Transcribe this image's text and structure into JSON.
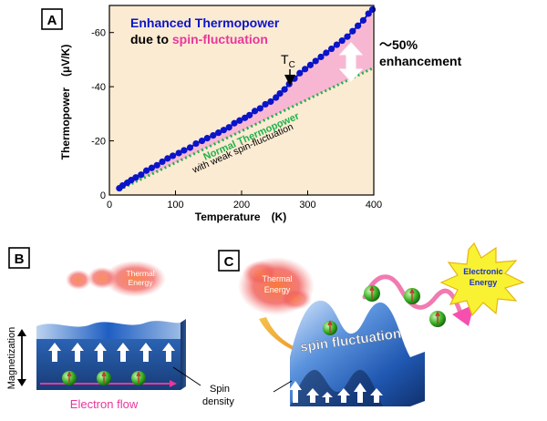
{
  "panels": {
    "a": {
      "label": "A"
    },
    "b": {
      "label": "B"
    },
    "c": {
      "label": "C"
    }
  },
  "chart_data": {
    "type": "scatter",
    "title_line1": "Enhanced Thermopower",
    "title_line2_a": "due to ",
    "title_line2_b": "spin-fluctuation",
    "xlabel": "Temperature　(K)",
    "ylabel": "Thermopower　(μV/K)",
    "xlim": [
      0,
      400
    ],
    "ylim": [
      0,
      -70
    ],
    "x_ticks": [
      "0",
      "100",
      "200",
      "300",
      "400"
    ],
    "y_ticks": [
      "0",
      "-20",
      "-40",
      "-60"
    ],
    "tc_label": "T",
    "tc_sub": "C",
    "normal_label": "Normal Thermopower",
    "weak_label": "with weak spin-fluctuation",
    "enhancement_pct": "～50%",
    "enhancement_word": "enhancement",
    "colors": {
      "data": "#0a14c8",
      "normal": "#22b14c",
      "bg": "#fbebd3",
      "fill": "#f7b7d2",
      "title_pink": "#e8379a"
    },
    "series": [
      {
        "x": [
          15,
          20,
          27,
          33,
          40,
          48,
          56,
          64,
          72,
          80,
          88,
          96,
          105,
          113,
          122,
          131,
          140,
          148,
          157,
          165,
          173,
          181,
          189,
          197,
          205,
          212,
          220,
          228,
          236,
          244,
          252,
          258,
          265,
          272,
          280,
          288,
          296,
          304,
          312,
          320,
          328,
          336,
          344,
          352,
          360,
          368,
          376,
          384,
          392,
          398
        ],
        "y": [
          -2.5,
          -3.5,
          -4.5,
          -5.5,
          -6.5,
          -7.5,
          -9,
          -10,
          -11,
          -12.3,
          -13.5,
          -14.5,
          -15.5,
          -16.5,
          -17.5,
          -19,
          -20,
          -21,
          -22,
          -23,
          -24,
          -25,
          -26.5,
          -27.5,
          -28.5,
          -29.5,
          -31,
          -32,
          -33.5,
          -34.5,
          -36,
          -37.5,
          -39,
          -41,
          -43,
          -45,
          -46.5,
          -48,
          -49.5,
          -51,
          -52.5,
          -54,
          -55.5,
          -57,
          -58.5,
          -60.5,
          -62.5,
          -64.5,
          -67,
          -68.5
        ]
      },
      {
        "x": [
          15,
          400
        ],
        "y": [
          -2,
          -47
        ]
      }
    ]
  },
  "panel_b": {
    "thermal_energy": [
      "Thermal",
      "Energy"
    ],
    "magnetization": "Magnetization",
    "electron_flow": "Electron flow",
    "spin_density": [
      "Spin",
      "density"
    ]
  },
  "panel_c": {
    "thermal_energy": [
      "Thermal",
      "Energy"
    ],
    "electronic_energy": [
      "Electronic",
      "Energy"
    ],
    "spin_fluctuation": "spin fluctuation"
  }
}
